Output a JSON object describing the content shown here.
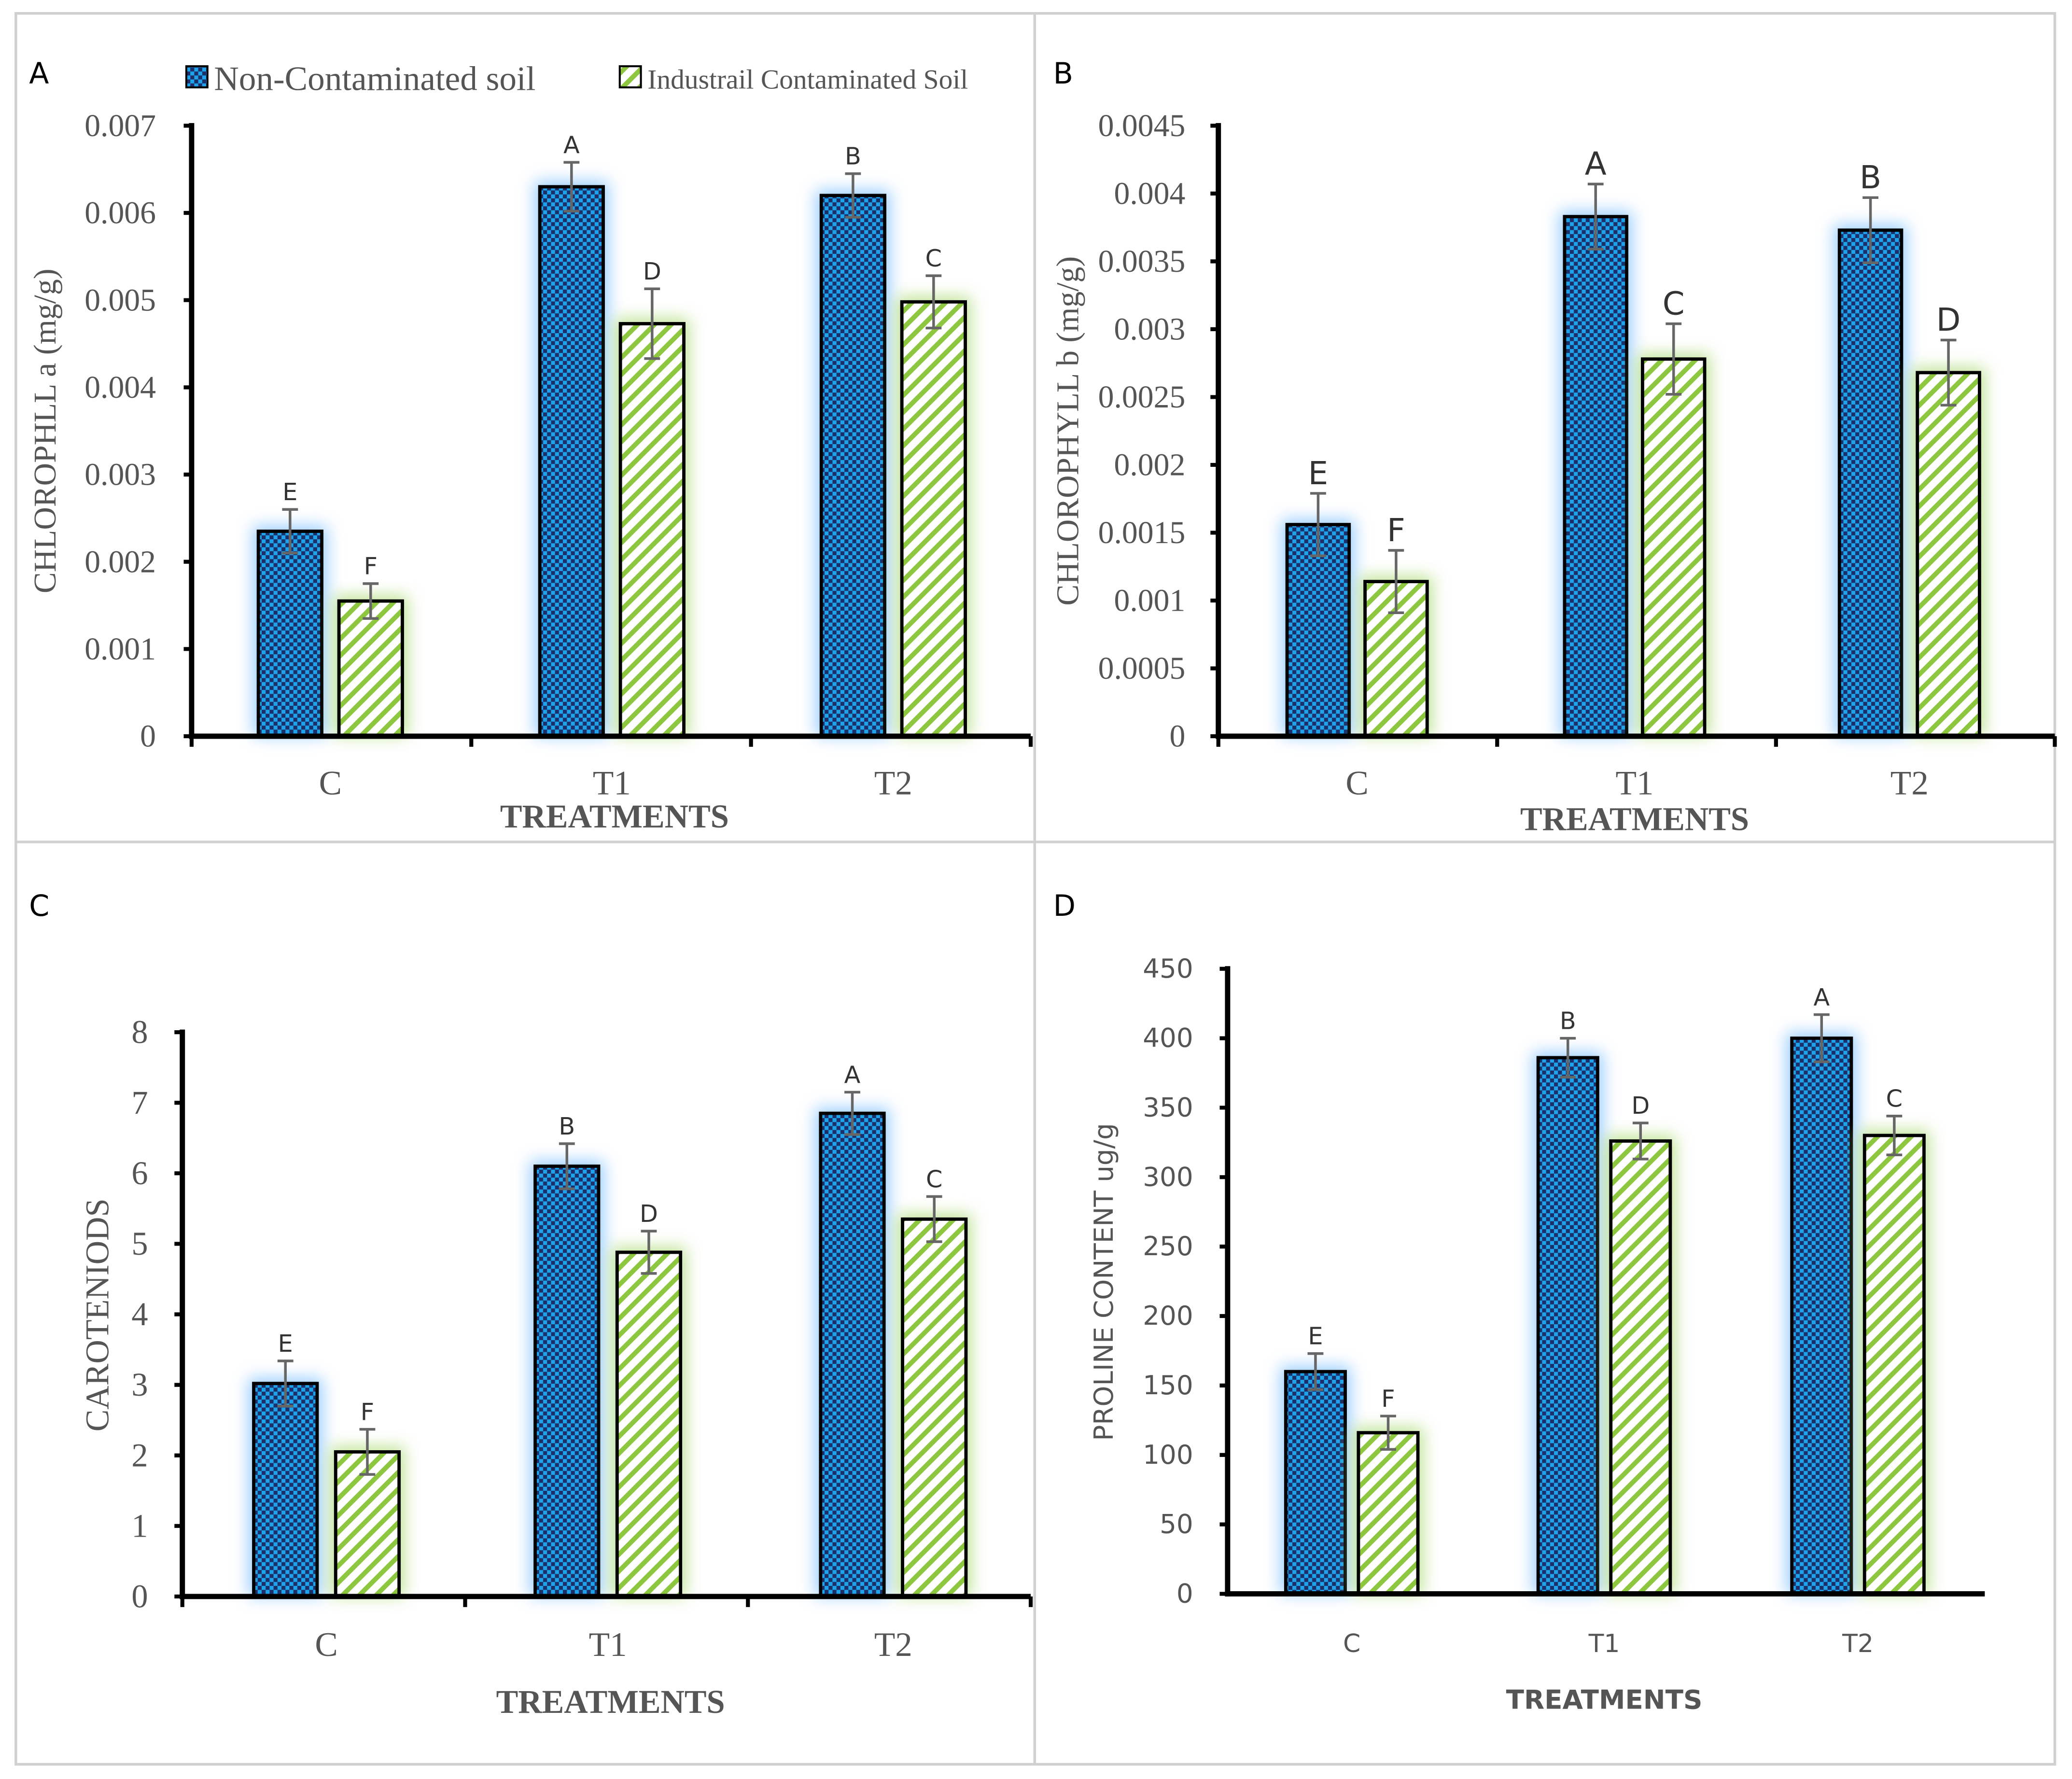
{
  "legend": {
    "series": [
      "Non-Contaminated soil",
      "Industrail Contaminated Soil"
    ]
  },
  "colors": {
    "nc_dark": "#1b2f6b",
    "nc_light": "#1ea3ea",
    "ic_stripe": "#8dc63f",
    "glow_blue": "#8fc8ff",
    "glow_green": "#b8e08a"
  },
  "chart_data": [
    {
      "panel": "A",
      "type": "bar",
      "categories": [
        "C",
        "T1",
        "T2"
      ],
      "xlabel": "TREATMENTS",
      "ylabel": "CHLOROPHLL a (mg/g)",
      "ylim": [
        0,
        0.007
      ],
      "yticks": [
        "0",
        "0.001",
        "0.002",
        "0.003",
        "0.004",
        "0.005",
        "0.006",
        "0.007"
      ],
      "tick_step": 0.001,
      "grid": false,
      "series": [
        {
          "name": "Non-Contaminated soil",
          "values": [
            0.00235,
            0.0063,
            0.0062
          ],
          "errors": [
            0.00025,
            0.00028,
            0.00025
          ],
          "letters": [
            "E",
            "A",
            "B"
          ]
        },
        {
          "name": "Industrail Contaminated Soil",
          "values": [
            0.00155,
            0.00473,
            0.00498
          ],
          "errors": [
            0.0002,
            0.0004,
            0.0003
          ],
          "letters": [
            "F",
            "D",
            "C"
          ]
        }
      ]
    },
    {
      "panel": "B",
      "type": "bar",
      "categories": [
        "C",
        "T1",
        "T2"
      ],
      "xlabel": "TREATMENTS",
      "ylabel": "CHLOROPHYLL b (mg/g)",
      "ylim": [
        0,
        0.0045
      ],
      "yticks": [
        "0",
        "0.0005",
        "0.001",
        "0.0015",
        "0.002",
        "0.0025",
        "0.003",
        "0.0035",
        "0.004",
        "0.0045"
      ],
      "tick_step": 0.0005,
      "grid": false,
      "series": [
        {
          "name": "Non-Contaminated soil",
          "values": [
            0.00156,
            0.00383,
            0.00373
          ],
          "errors": [
            0.00023,
            0.00024,
            0.00024
          ],
          "letters": [
            "E",
            "A",
            "B"
          ]
        },
        {
          "name": "Industrail Contaminated Soil",
          "values": [
            0.00114,
            0.00278,
            0.00268
          ],
          "errors": [
            0.00023,
            0.00026,
            0.00024
          ],
          "letters": [
            "F",
            "C",
            "D"
          ]
        }
      ]
    },
    {
      "panel": "C",
      "type": "bar",
      "categories": [
        "C",
        "T1",
        "T2"
      ],
      "xlabel": "TREATMENTS",
      "ylabel": "CAROTENIODS",
      "ylim": [
        0,
        8
      ],
      "yticks": [
        "0",
        "1",
        "2",
        "3",
        "4",
        "5",
        "6",
        "7",
        "8"
      ],
      "tick_step": 1,
      "grid": false,
      "series": [
        {
          "name": "Non-Contaminated soil",
          "values": [
            3.02,
            6.1,
            6.85
          ],
          "errors": [
            0.32,
            0.32,
            0.3
          ],
          "letters": [
            "E",
            "B",
            "A"
          ]
        },
        {
          "name": "Industrail Contaminated Soil",
          "values": [
            2.05,
            4.88,
            5.35
          ],
          "errors": [
            0.32,
            0.3,
            0.32
          ],
          "letters": [
            "F",
            "D",
            "C"
          ]
        }
      ]
    },
    {
      "panel": "D",
      "type": "bar",
      "categories": [
        "C",
        "T1",
        "T2"
      ],
      "xlabel": "TREATMENTS",
      "ylabel": "PROLINE CONTENT ug/g",
      "ylim": [
        0,
        450
      ],
      "yticks": [
        "0",
        "50",
        "100",
        "150",
        "200",
        "250",
        "300",
        "350",
        "400",
        "450"
      ],
      "tick_step": 50,
      "grid": false,
      "series": [
        {
          "name": "Non-Contaminated soil",
          "values": [
            160,
            386,
            400
          ],
          "errors": [
            13,
            14,
            17
          ],
          "letters": [
            "E",
            "B",
            "A"
          ]
        },
        {
          "name": "Industrail Contaminated Soil",
          "values": [
            116,
            326,
            330
          ],
          "errors": [
            12,
            13,
            14
          ],
          "letters": [
            "F",
            "D",
            "C"
          ]
        }
      ]
    }
  ]
}
